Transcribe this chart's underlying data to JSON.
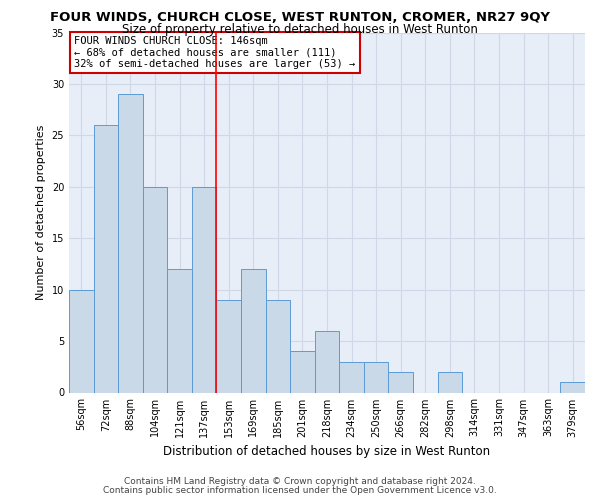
{
  "title": "FOUR WINDS, CHURCH CLOSE, WEST RUNTON, CROMER, NR27 9QY",
  "subtitle": "Size of property relative to detached houses in West Runton",
  "xlabel": "Distribution of detached houses by size in West Runton",
  "ylabel": "Number of detached properties",
  "categories": [
    "56sqm",
    "72sqm",
    "88sqm",
    "104sqm",
    "121sqm",
    "137sqm",
    "153sqm",
    "169sqm",
    "185sqm",
    "201sqm",
    "218sqm",
    "234sqm",
    "250sqm",
    "266sqm",
    "282sqm",
    "298sqm",
    "314sqm",
    "331sqm",
    "347sqm",
    "363sqm",
    "379sqm"
  ],
  "values": [
    10,
    26,
    29,
    20,
    12,
    20,
    9,
    12,
    9,
    4,
    6,
    3,
    3,
    2,
    0,
    2,
    0,
    0,
    0,
    0,
    1
  ],
  "bar_color": "#c9d9e8",
  "bar_edge_color": "#5b9bd5",
  "grid_color": "#d0d8e8",
  "background_color": "#e8eef8",
  "red_line_x": 5.5,
  "annotation_text": "FOUR WINDS CHURCH CLOSE: 146sqm\n← 68% of detached houses are smaller (111)\n32% of semi-detached houses are larger (53) →",
  "annotation_box_color": "#ffffff",
  "annotation_box_edge": "#cc0000",
  "footer1": "Contains HM Land Registry data © Crown copyright and database right 2024.",
  "footer2": "Contains public sector information licensed under the Open Government Licence v3.0.",
  "ylim": [
    0,
    35
  ],
  "yticks": [
    0,
    5,
    10,
    15,
    20,
    25,
    30,
    35
  ],
  "title_fontsize": 9.5,
  "subtitle_fontsize": 8.5,
  "xlabel_fontsize": 8.5,
  "ylabel_fontsize": 8,
  "tick_fontsize": 7,
  "annot_fontsize": 7.5,
  "footer_fontsize": 6.5
}
